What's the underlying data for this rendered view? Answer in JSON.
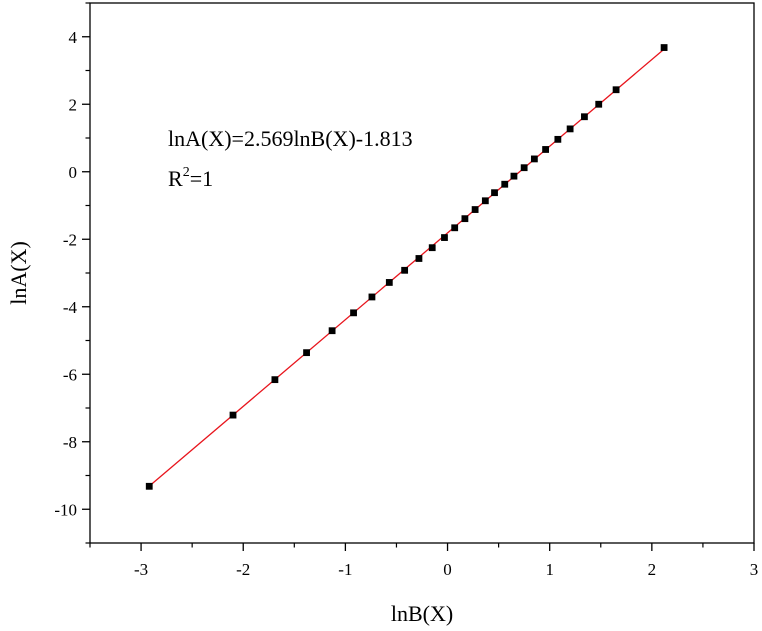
{
  "chart_data": {
    "type": "scatter",
    "title": "",
    "xlabel": "lnB(X)",
    "ylabel": "lnA(X)",
    "xlim": [
      -3.5,
      3
    ],
    "ylim": [
      -11,
      5
    ],
    "x_ticks": [
      -3,
      -2,
      -1,
      0,
      1,
      2,
      3
    ],
    "y_ticks": [
      -10,
      -8,
      -6,
      -4,
      -2,
      0,
      2,
      4
    ],
    "grid": false,
    "legend": "none",
    "colors": {
      "points": "#000000",
      "fit_line": "#e8141c",
      "axes": "#000000"
    },
    "annotation": {
      "equation": "lnA(X)=2.569lnB(X)-1.813",
      "r2_prefix": "R",
      "r2_sup": "2",
      "r2_suffix": "=1"
    },
    "fit_line": {
      "slope": 2.569,
      "intercept": -1.813,
      "x_range": [
        -2.92,
        2.12
      ]
    },
    "series": [
      {
        "x": [
          -2.92,
          -2.1,
          -1.69,
          -1.38,
          -1.13,
          -0.92,
          -0.74,
          -0.57,
          -0.42,
          -0.28,
          -0.15,
          -0.03,
          0.07,
          0.17,
          0.27,
          0.37,
          0.46,
          0.56,
          0.65,
          0.75,
          0.85,
          0.96,
          1.08,
          1.2,
          1.34,
          1.48,
          1.65,
          2.12
        ],
        "y": [
          -9.32,
          -7.21,
          -6.16,
          -5.36,
          -4.71,
          -4.18,
          -3.71,
          -3.28,
          -2.92,
          -2.57,
          -2.25,
          -1.95,
          -1.66,
          -1.39,
          -1.12,
          -0.86,
          -0.62,
          -0.37,
          -0.13,
          0.12,
          0.38,
          0.66,
          0.96,
          1.27,
          1.63,
          2.0,
          2.43,
          3.68
        ]
      }
    ]
  }
}
